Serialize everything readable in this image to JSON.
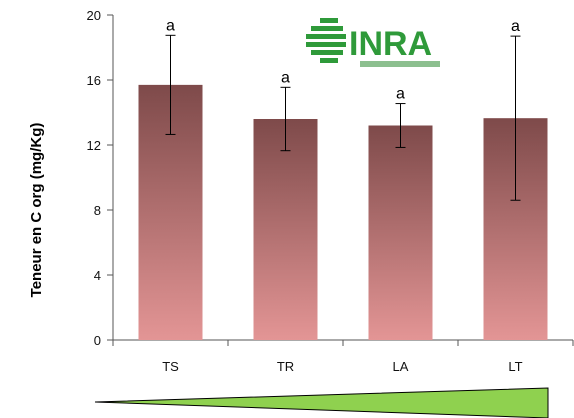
{
  "chart_data": {
    "type": "bar",
    "categories": [
      "TS",
      "TR",
      "LA",
      "LT"
    ],
    "values": [
      15.7,
      13.6,
      13.2,
      13.65
    ],
    "error": [
      3.05,
      1.95,
      1.35,
      5.05
    ],
    "significance": [
      "a",
      "a",
      "a",
      "a"
    ],
    "ylabel": "Teneur en C org (mg/Kg)",
    "xlabel": "",
    "ylim": [
      0,
      20
    ],
    "yticks": [
      0,
      4,
      8,
      12,
      16,
      20
    ],
    "grid": false,
    "legend": "none"
  },
  "logo": {
    "text": "INRA"
  },
  "colors": {
    "bar_top": "#7e4a4a",
    "bar_bottom": "#e39595",
    "logo_green": "#2f9a3a",
    "triangle_green": "#8fd14f",
    "axis": "#555555"
  }
}
